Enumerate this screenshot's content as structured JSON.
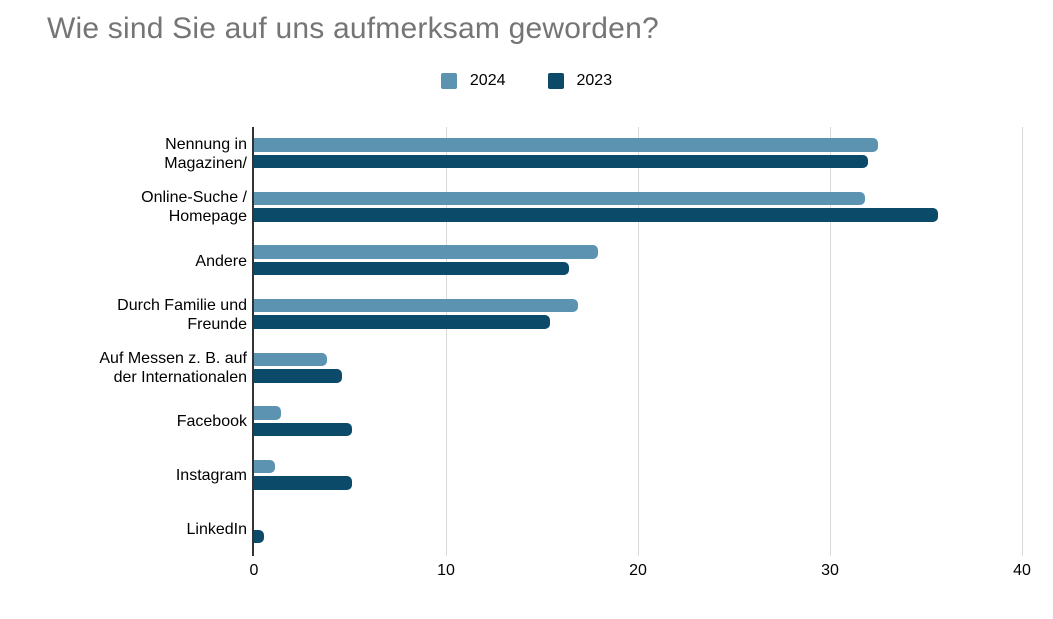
{
  "title": "Wie sind Sie auf uns aufmerksam geworden?",
  "colors": {
    "series_2024": "#5b93b1",
    "series_2023": "#0b4a68",
    "title_text": "#757575",
    "gridline": "#d9d9d9",
    "axis": "#333333",
    "background": "#ffffff"
  },
  "legend": {
    "items": [
      {
        "label": "2024",
        "color": "#5b93b1"
      },
      {
        "label": "2023",
        "color": "#0b4a68"
      }
    ]
  },
  "chart_data": {
    "type": "bar",
    "orientation": "horizontal",
    "title": "Wie sind Sie auf uns aufmerksam geworden?",
    "categories": [
      "Nennung in Magazinen/",
      "Online-Suche / Homepage",
      "Andere",
      "Durch Familie und Freunde",
      "Auf Messen z. B. auf der Internationalen",
      "Facebook",
      "Instagram",
      "LinkedIn"
    ],
    "category_lines": [
      [
        "Nennung in",
        "Magazinen/"
      ],
      [
        "Online-Suche /",
        "Homepage"
      ],
      [
        "Andere"
      ],
      [
        "Durch Familie und",
        "Freunde"
      ],
      [
        "Auf Messen z. B. auf",
        "der Internationalen"
      ],
      [
        "Facebook"
      ],
      [
        "Instagram"
      ],
      [
        "LinkedIn"
      ]
    ],
    "series": [
      {
        "name": "2024",
        "color": "#5b93b1",
        "values": [
          32.5,
          31.8,
          17.9,
          16.9,
          3.8,
          1.4,
          1.1,
          0
        ]
      },
      {
        "name": "2023",
        "color": "#0b4a68",
        "values": [
          32.0,
          35.6,
          16.4,
          15.4,
          4.6,
          5.1,
          5.1,
          0.5
        ]
      }
    ],
    "xlabel": "",
    "ylabel": "",
    "xlim": [
      0,
      40
    ],
    "xticks": [
      0,
      10,
      20,
      30,
      40
    ],
    "grid": true,
    "legend_position": "top"
  }
}
